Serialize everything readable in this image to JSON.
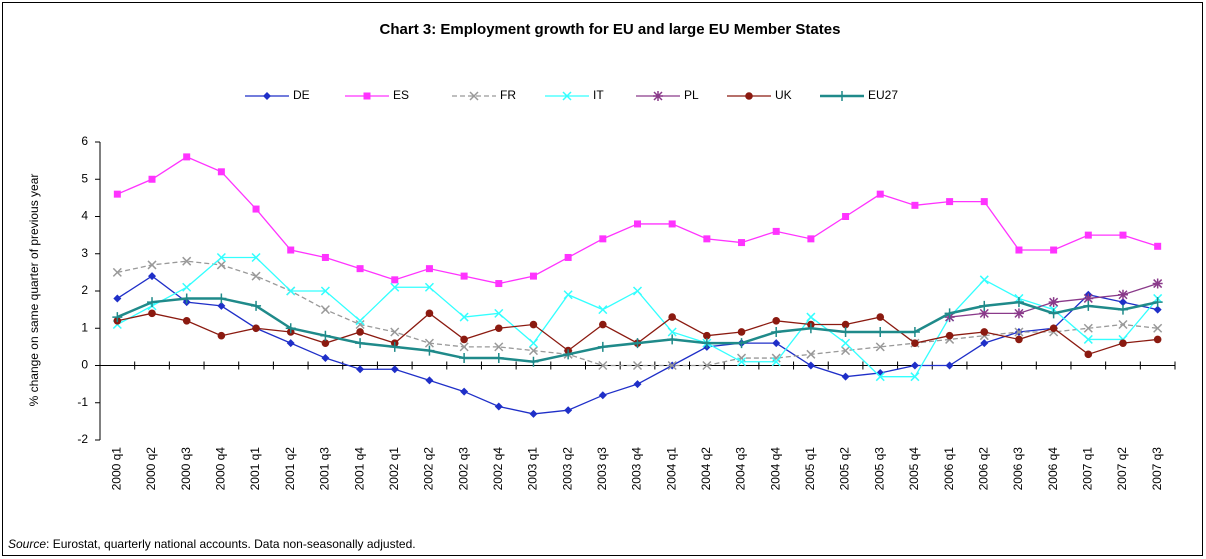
{
  "chart_data": {
    "type": "line",
    "title": "Chart 3: Employment growth for EU and large EU Member States",
    "y_label": "% change on same quarter of previous year",
    "source_label": "Source",
    "source_text": ": Eurostat, quarterly national accounts. Data non-seasonally adjusted.",
    "categories": [
      "2000 q1",
      "2000 q2",
      "2000 q3",
      "2000 q4",
      "2001 q1",
      "2001 q2",
      "2001 q3",
      "2001 q4",
      "2002 q1",
      "2002 q2",
      "2002 q3",
      "2002 q4",
      "2003 q1",
      "2003 q2",
      "2003 q3",
      "2003 q4",
      "2004 q1",
      "2004 q2",
      "2004 q3",
      "2004 q4",
      "2005 q1",
      "2005 q2",
      "2005 q3",
      "2005 q4",
      "2006 q1",
      "2006 q2",
      "2006 q3",
      "2006 q4",
      "2007 q1",
      "2007 q2",
      "2007 q3"
    ],
    "ylim": [
      -2,
      6
    ],
    "yticks": [
      -2,
      -1,
      0,
      1,
      2,
      3,
      4,
      5,
      6
    ],
    "grid": false,
    "legend": "top",
    "series": [
      {
        "name": "DE",
        "color": "#1f2fc8",
        "marker": "diamond",
        "values": [
          1.8,
          2.4,
          1.7,
          1.6,
          1.0,
          0.6,
          0.2,
          -0.1,
          -0.1,
          -0.4,
          -0.7,
          -1.1,
          -1.3,
          -1.2,
          -0.8,
          -0.5,
          0.0,
          0.5,
          0.6,
          0.6,
          0.0,
          -0.3,
          -0.2,
          0.0,
          0.0,
          0.6,
          0.9,
          1.0,
          1.9,
          1.7,
          1.5
        ]
      },
      {
        "name": "ES",
        "color": "#ff33ff",
        "marker": "square",
        "values": [
          4.6,
          5.0,
          5.6,
          5.2,
          4.2,
          3.1,
          2.9,
          2.6,
          2.3,
          2.6,
          2.4,
          2.2,
          2.4,
          2.9,
          3.4,
          3.8,
          3.8,
          3.4,
          3.3,
          3.6,
          3.4,
          4.0,
          4.6,
          4.3,
          4.4,
          4.4,
          3.1,
          3.1,
          3.5,
          3.5,
          3.2
        ]
      },
      {
        "name": "FR",
        "color": "#999999",
        "marker": "x",
        "dash": true,
        "values": [
          2.5,
          2.7,
          2.8,
          2.7,
          2.4,
          2.0,
          1.5,
          1.1,
          0.9,
          0.6,
          0.5,
          0.5,
          0.4,
          0.3,
          0.0,
          0.0,
          0.0,
          0.0,
          0.2,
          0.2,
          0.3,
          0.4,
          0.5,
          0.6,
          0.7,
          0.8,
          0.9,
          0.9,
          1.0,
          1.1,
          1.0
        ]
      },
      {
        "name": "IT",
        "color": "#33ffff",
        "marker": "x",
        "values": [
          1.1,
          1.6,
          2.1,
          2.9,
          2.9,
          2.0,
          2.0,
          1.2,
          2.1,
          2.1,
          1.3,
          1.4,
          0.6,
          1.9,
          1.5,
          2.0,
          0.9,
          0.6,
          0.1,
          0.1,
          1.3,
          0.6,
          -0.3,
          -0.3,
          1.3,
          2.3,
          1.8,
          1.5,
          0.7,
          0.7,
          1.8
        ]
      },
      {
        "name": "PL",
        "color": "#8a3a8a",
        "marker": "star",
        "values": [
          null,
          null,
          null,
          null,
          null,
          null,
          null,
          null,
          null,
          null,
          null,
          null,
          null,
          null,
          null,
          null,
          null,
          null,
          null,
          null,
          null,
          null,
          null,
          null,
          1.3,
          1.4,
          1.4,
          1.7,
          1.8,
          1.9,
          2.2
        ]
      },
      {
        "name": "UK",
        "color": "#8b1a10",
        "marker": "circle",
        "values": [
          1.2,
          1.4,
          1.2,
          0.8,
          1.0,
          0.9,
          0.6,
          0.9,
          0.6,
          1.4,
          0.7,
          1.0,
          1.1,
          0.4,
          1.1,
          0.6,
          1.3,
          0.8,
          0.9,
          1.2,
          1.1,
          1.1,
          1.3,
          0.6,
          0.8,
          0.9,
          0.7,
          1.0,
          0.3,
          0.6,
          0.7
        ]
      },
      {
        "name": "EU27",
        "color": "#1f8a8a",
        "marker": "plus",
        "values": [
          1.3,
          1.7,
          1.8,
          1.8,
          1.6,
          1.0,
          0.8,
          0.6,
          0.5,
          0.4,
          0.2,
          0.2,
          0.1,
          0.3,
          0.5,
          0.6,
          0.7,
          0.6,
          0.6,
          0.9,
          1.0,
          0.9,
          0.9,
          0.9,
          1.4,
          1.6,
          1.7,
          1.4,
          1.6,
          1.5,
          1.7
        ]
      }
    ]
  }
}
